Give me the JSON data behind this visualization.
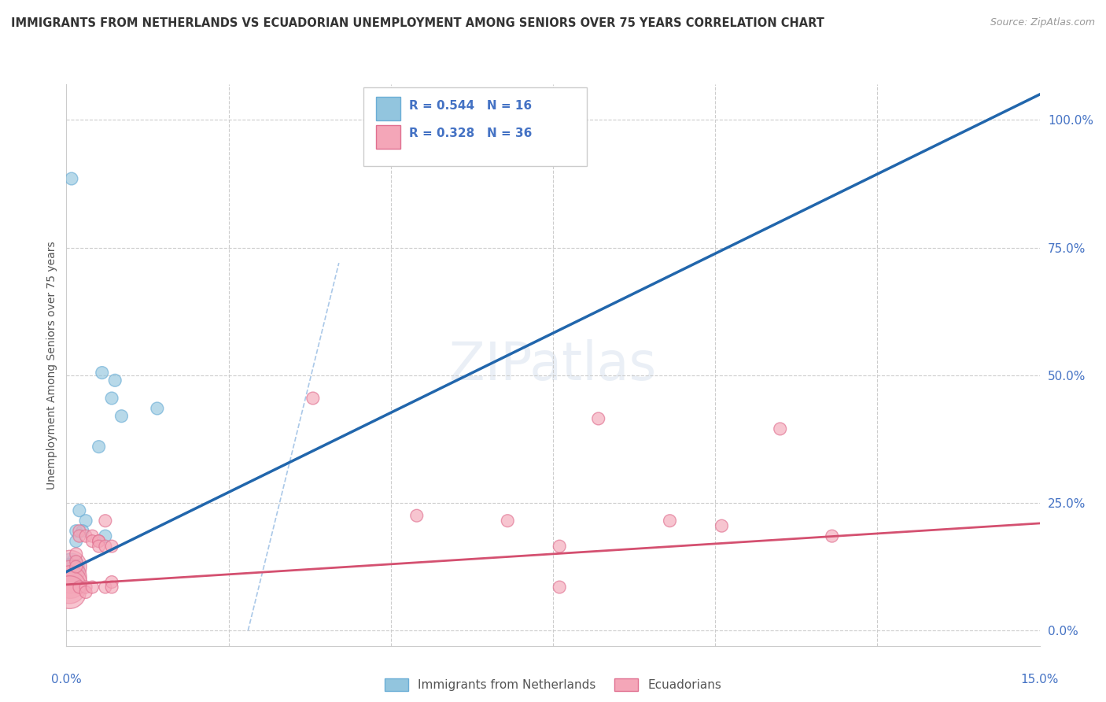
{
  "title": "IMMIGRANTS FROM NETHERLANDS VS ECUADORIAN UNEMPLOYMENT AMONG SENIORS OVER 75 YEARS CORRELATION CHART",
  "source": "Source: ZipAtlas.com",
  "ylabel": "Unemployment Among Seniors over 75 years",
  "right_yticks": [
    "100.0%",
    "75.0%",
    "50.0%",
    "25.0%",
    "0.0%"
  ],
  "right_ytick_vals": [
    1.0,
    0.75,
    0.5,
    0.25,
    0.0
  ],
  "legend_label1": "Immigrants from Netherlands",
  "legend_label2": "Ecuadorians",
  "blue_color": "#92c5de",
  "pink_color": "#f4a6b8",
  "blue_edge_color": "#6baed6",
  "pink_edge_color": "#e07090",
  "blue_line_color": "#2166ac",
  "pink_line_color": "#d45070",
  "blue_scatter": [
    [
      0.0008,
      0.885
    ],
    [
      0.0055,
      0.505
    ],
    [
      0.0075,
      0.49
    ],
    [
      0.007,
      0.455
    ],
    [
      0.0085,
      0.42
    ],
    [
      0.005,
      0.36
    ],
    [
      0.002,
      0.235
    ],
    [
      0.003,
      0.215
    ],
    [
      0.0015,
      0.195
    ],
    [
      0.0025,
      0.195
    ],
    [
      0.0015,
      0.175
    ],
    [
      0.001,
      0.135
    ],
    [
      0.0007,
      0.125
    ],
    [
      0.0007,
      0.115
    ],
    [
      0.014,
      0.435
    ],
    [
      0.006,
      0.185
    ]
  ],
  "pink_scatter": [
    [
      0.0006,
      0.125
    ],
    [
      0.0006,
      0.105
    ],
    [
      0.0006,
      0.095
    ],
    [
      0.0005,
      0.085
    ],
    [
      0.0005,
      0.075
    ],
    [
      0.0015,
      0.15
    ],
    [
      0.0015,
      0.135
    ],
    [
      0.0015,
      0.125
    ],
    [
      0.002,
      0.195
    ],
    [
      0.002,
      0.185
    ],
    [
      0.002,
      0.085
    ],
    [
      0.003,
      0.185
    ],
    [
      0.003,
      0.085
    ],
    [
      0.003,
      0.075
    ],
    [
      0.004,
      0.185
    ],
    [
      0.004,
      0.175
    ],
    [
      0.004,
      0.085
    ],
    [
      0.005,
      0.175
    ],
    [
      0.005,
      0.175
    ],
    [
      0.005,
      0.165
    ],
    [
      0.006,
      0.215
    ],
    [
      0.006,
      0.165
    ],
    [
      0.006,
      0.085
    ],
    [
      0.007,
      0.165
    ],
    [
      0.007,
      0.095
    ],
    [
      0.007,
      0.085
    ],
    [
      0.038,
      0.455
    ],
    [
      0.054,
      0.225
    ],
    [
      0.068,
      0.215
    ],
    [
      0.076,
      0.165
    ],
    [
      0.076,
      0.085
    ],
    [
      0.082,
      0.415
    ],
    [
      0.093,
      0.215
    ],
    [
      0.101,
      0.205
    ],
    [
      0.11,
      0.395
    ],
    [
      0.118,
      0.185
    ]
  ],
  "blue_line": [
    [
      0.0,
      0.115
    ],
    [
      0.15,
      1.05
    ]
  ],
  "pink_line": [
    [
      0.0,
      0.09
    ],
    [
      0.15,
      0.21
    ]
  ],
  "dash_line": [
    [
      0.028,
      0.0
    ],
    [
      0.042,
      0.72
    ]
  ],
  "xmin": 0.0,
  "xmax": 0.15,
  "ymin": -0.03,
  "ymax": 1.07,
  "xtick_positions": [
    0.0,
    0.025,
    0.05,
    0.075,
    0.1,
    0.125,
    0.15
  ],
  "gridline_y": [
    0.0,
    0.25,
    0.5,
    0.75,
    1.0
  ]
}
